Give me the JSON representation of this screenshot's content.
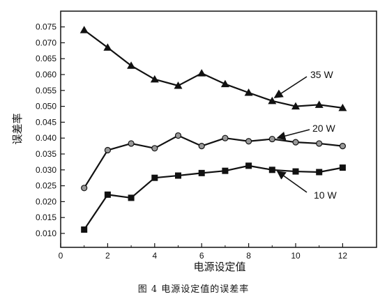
{
  "caption": "图 4 电源设定值的误差率",
  "chart_data": {
    "type": "line",
    "xlabel": "电源设定值",
    "ylabel": "误差率",
    "xlim": [
      0,
      12.5
    ],
    "ylim": [
      0.007,
      0.08
    ],
    "x_ticks": [
      0,
      2,
      4,
      6,
      8,
      10,
      12
    ],
    "y_ticks": [
      0.01,
      0.015,
      0.02,
      0.025,
      0.03,
      0.035,
      0.04,
      0.045,
      0.05,
      0.055,
      0.06,
      0.065,
      0.07,
      0.075
    ],
    "x_tick_labels": [
      "0",
      "2",
      "4",
      "6",
      "8",
      "10",
      "12"
    ],
    "y_tick_labels": [
      "0.010",
      "0.015",
      "0.020",
      "0.025",
      "0.030",
      "0.035",
      "0.040",
      "0.045",
      "0.050",
      "0.055",
      "0.060",
      "0.065",
      "0.070",
      "0.075"
    ],
    "x": [
      1,
      2,
      3,
      4,
      5,
      6,
      7,
      8,
      9,
      10,
      11,
      12
    ],
    "series": [
      {
        "name": "35 W",
        "marker": "triangle",
        "values": [
          0.074,
          0.0685,
          0.0628,
          0.0585,
          0.0565,
          0.0604,
          0.057,
          0.0543,
          0.0517,
          0.05,
          0.0505,
          0.0495
        ]
      },
      {
        "name": "20 W",
        "marker": "circle",
        "values": [
          0.0243,
          0.0362,
          0.0383,
          0.0368,
          0.0408,
          0.0375,
          0.04,
          0.039,
          0.0397,
          0.0387,
          0.0383,
          0.0375
        ]
      },
      {
        "name": "10 W",
        "marker": "square",
        "values": [
          0.0112,
          0.0222,
          0.0212,
          0.0275,
          0.0282,
          0.029,
          0.0297,
          0.0313,
          0.03,
          0.0295,
          0.0293,
          0.0307
        ]
      }
    ]
  }
}
